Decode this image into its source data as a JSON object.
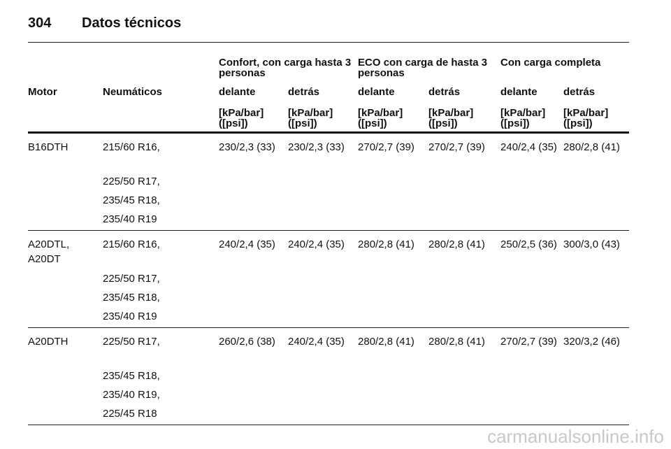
{
  "header": {
    "page": "304",
    "title": "Datos técnicos"
  },
  "table": {
    "groups": [
      "Confort, con carga hasta 3 personas",
      "ECO con carga de hasta 3 personas",
      "Con carga completa"
    ],
    "columns": [
      "Motor",
      "Neumáticos",
      "delante",
      "detrás",
      "delante",
      "detrás",
      "delante",
      "detrás"
    ],
    "units": [
      "[kPa/bar] ([psi])",
      "[kPa/bar] ([psi])",
      "[kPa/bar] ([psi])",
      "[kPa/bar] ([psi])",
      "[kPa/bar] ([psi])",
      "[kPa/bar] ([psi])"
    ],
    "rows": [
      {
        "motor": [
          "B16DTH"
        ],
        "tyres": [
          "215/60 R16,",
          "225/50 R17,",
          "235/45 R18,",
          "235/40 R19"
        ],
        "pressures": [
          "230/2,3 (33)",
          "230/2,3 (33)",
          "270/2,7 (39)",
          "270/2,7 (39)",
          "240/2,4 (35)",
          "280/2,8 (41)"
        ]
      },
      {
        "motor": [
          "A20DTL,",
          "A20DT"
        ],
        "tyres": [
          "215/60 R16,",
          "225/50 R17,",
          "235/45 R18,",
          "235/40 R19"
        ],
        "pressures": [
          "240/2,4 (35)",
          "240/2,4 (35)",
          "280/2,8 (41)",
          "280/2,8 (41)",
          "250/2,5 (36)",
          "300/3,0 (43)"
        ]
      },
      {
        "motor": [
          "A20DTH"
        ],
        "tyres": [
          "225/50 R17,",
          "235/45 R18,",
          "235/40 R19,",
          "225/45 R18"
        ],
        "pressures": [
          "260/2,6 (38)",
          "240/2,4 (35)",
          "280/2,8 (41)",
          "280/2,8 (41)",
          "270/2,7 (39)",
          "320/3,2 (46)"
        ]
      }
    ]
  },
  "footer": "carmanualsonline.info"
}
